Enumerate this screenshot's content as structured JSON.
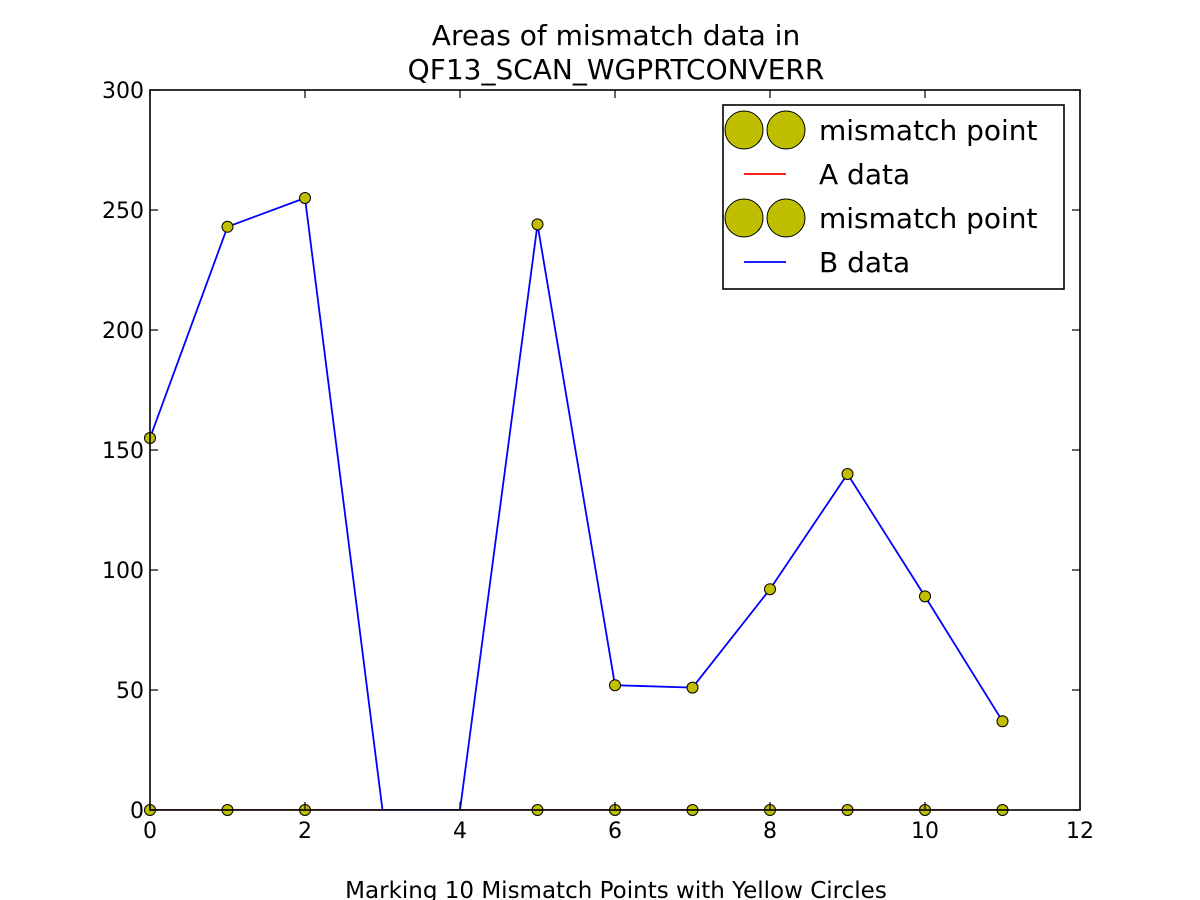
{
  "chart_data": {
    "type": "line",
    "title_lines": [
      "Areas of mismatch data in",
      "QF13_SCAN_WGPRTCONVERR"
    ],
    "xlabel": "Marking 10 Mismatch Points with Yellow Circles",
    "ylabel": "",
    "xlim": [
      0,
      12
    ],
    "ylim": [
      0,
      300
    ],
    "x_ticks": [
      0,
      2,
      4,
      6,
      8,
      10,
      12
    ],
    "y_ticks": [
      0,
      50,
      100,
      150,
      200,
      250,
      300
    ],
    "grid": false,
    "legend_position": "top-right",
    "legend": [
      {
        "label": "mismatch point",
        "kind": "marker",
        "color": "#bfbf00"
      },
      {
        "label": "A data",
        "kind": "line",
        "color": "#ff0000"
      },
      {
        "label": "mismatch point",
        "kind": "marker",
        "color": "#bfbf00"
      },
      {
        "label": "B data",
        "kind": "line",
        "color": "#0000ff"
      }
    ],
    "series": [
      {
        "name": "A data",
        "color": "#ff0000",
        "x": [
          0,
          1,
          2,
          3,
          4,
          5,
          6,
          7,
          8,
          9,
          10,
          11
        ],
        "y": [
          0,
          0,
          0,
          0,
          0,
          0,
          0,
          0,
          0,
          0,
          0,
          0
        ]
      },
      {
        "name": "B data",
        "color": "#0000ff",
        "x": [
          0,
          1,
          2,
          3,
          4,
          5,
          6,
          7,
          8,
          9,
          10,
          11
        ],
        "y": [
          155,
          243,
          255,
          0,
          0,
          244,
          52,
          51,
          92,
          140,
          89,
          37
        ]
      }
    ],
    "mismatch_points": [
      {
        "name": "mismatch point",
        "color": "#bfbf00",
        "x": [
          0,
          1,
          2,
          5,
          6,
          7,
          8,
          9,
          10,
          11
        ],
        "y": [
          0,
          0,
          0,
          0,
          0,
          0,
          0,
          0,
          0,
          0
        ]
      },
      {
        "name": "mismatch point",
        "color": "#bfbf00",
        "x": [
          0,
          1,
          2,
          5,
          6,
          7,
          8,
          9,
          10,
          11
        ],
        "y": [
          155,
          243,
          255,
          244,
          52,
          51,
          92,
          140,
          89,
          37
        ]
      }
    ]
  }
}
